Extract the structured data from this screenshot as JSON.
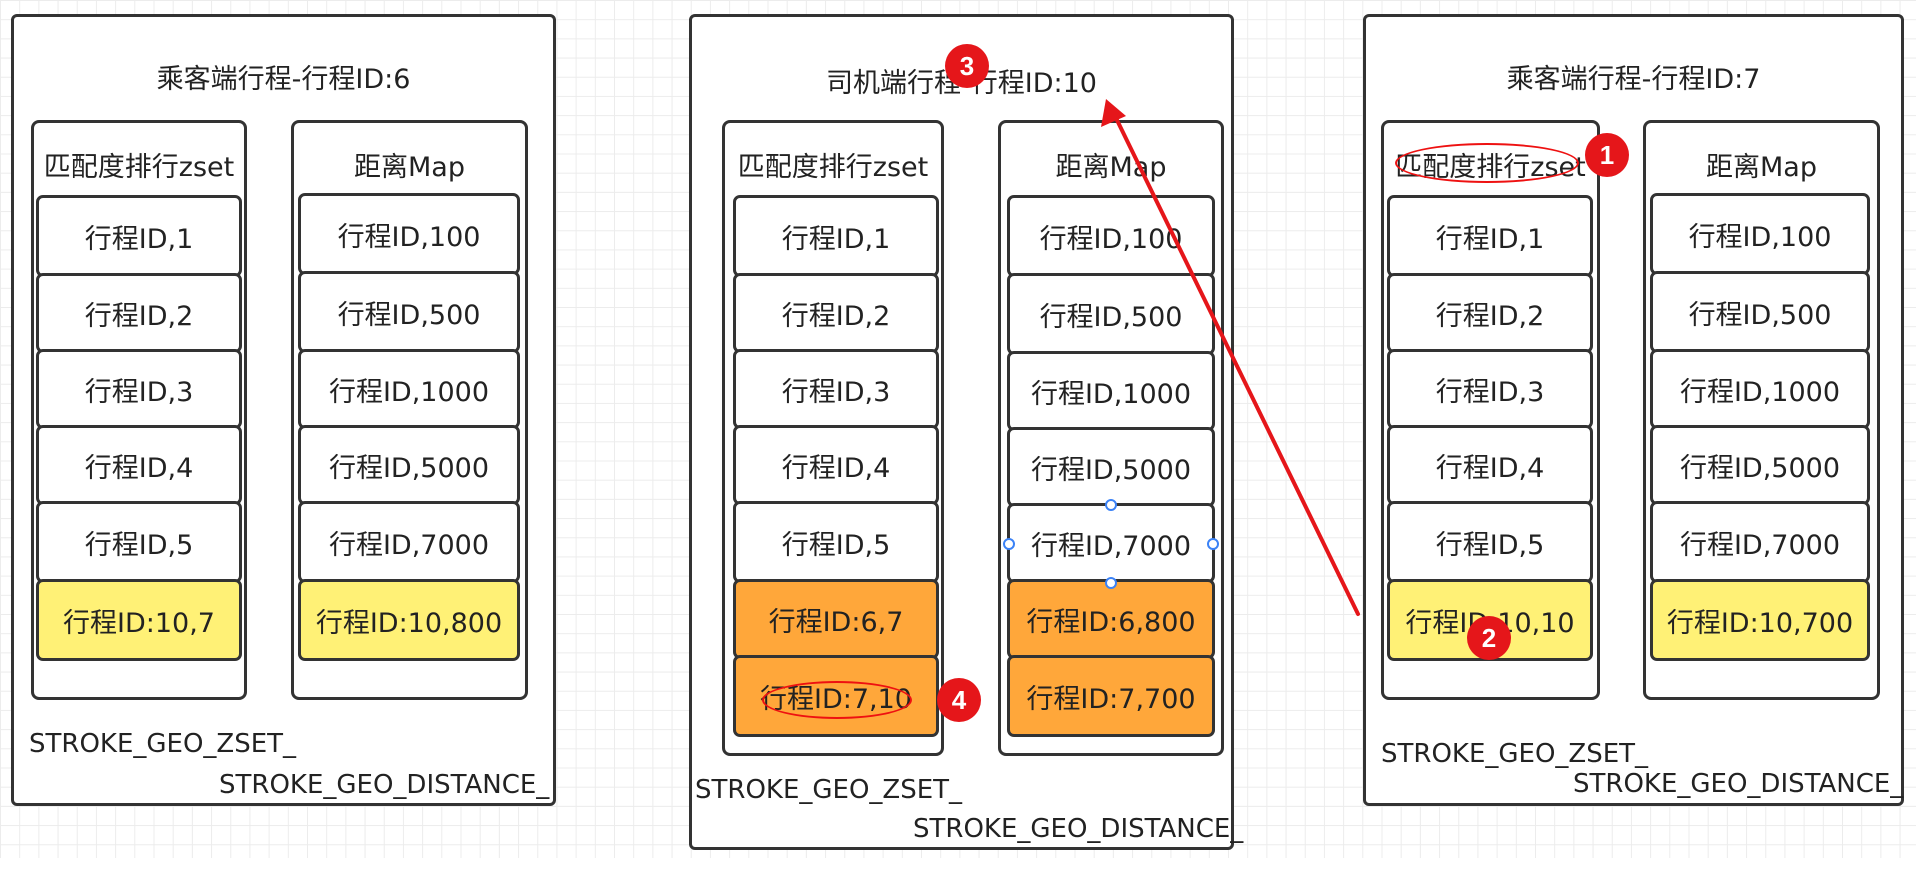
{
  "panel_left": {
    "title": "乘客端行程-行程ID:6",
    "zset": {
      "header": "匹配度排行zset",
      "items": [
        "行程ID,1",
        "行程ID,2",
        "行程ID,3",
        "行程ID,4",
        "行程ID,5"
      ],
      "highlight": [
        "行程ID:10,7"
      ]
    },
    "map": {
      "header": "距离Map",
      "items": [
        "行程ID,100",
        "行程ID,500",
        "行程ID,1000",
        "行程ID,5000",
        "行程ID,7000"
      ],
      "highlight": [
        "行程ID:10,800"
      ]
    },
    "footer_zset": "STROKE_GEO_ZSET_",
    "footer_distance": "STROKE_GEO_DISTANCE_"
  },
  "panel_middle": {
    "title": "司机端行程-行程ID:10",
    "zset": {
      "header": "匹配度排行zset",
      "items": [
        "行程ID,1",
        "行程ID,2",
        "行程ID,3",
        "行程ID,4",
        "行程ID,5"
      ],
      "highlight": [
        "行程ID:6,7",
        "行程ID:7,10"
      ]
    },
    "map": {
      "header": "距离Map",
      "items": [
        "行程ID,100",
        "行程ID,500",
        "行程ID,1000",
        "行程ID,5000",
        "行程ID,7000"
      ],
      "highlight": [
        "行程ID:6,800",
        "行程ID:7,700"
      ]
    },
    "footer_zset": "STROKE_GEO_ZSET_",
    "footer_distance": "STROKE_GEO_DISTANCE_"
  },
  "panel_right": {
    "title": "乘客端行程-行程ID:7",
    "zset": {
      "header": "匹配度排行zset",
      "items": [
        "行程ID,1",
        "行程ID,2",
        "行程ID,3",
        "行程ID,4",
        "行程ID,5"
      ],
      "highlight": [
        "行程ID:10,10"
      ]
    },
    "map": {
      "header": "距离Map",
      "items": [
        "行程ID,100",
        "行程ID,500",
        "行程ID,1000",
        "行程ID,5000",
        "行程ID,7000"
      ],
      "highlight": [
        "行程ID:10,700"
      ]
    },
    "footer_zset": "STROKE_GEO_ZSET_",
    "footer_distance": "STROKE_GEO_DISTANCE_"
  },
  "badges": {
    "b1": "1",
    "b2": "2",
    "b3": "3",
    "b4": "4"
  },
  "colors": {
    "yellow": "#fff176",
    "orange": "#ffa73a",
    "annotation_red": "#e5161a",
    "selection_blue": "#3b82f6"
  }
}
